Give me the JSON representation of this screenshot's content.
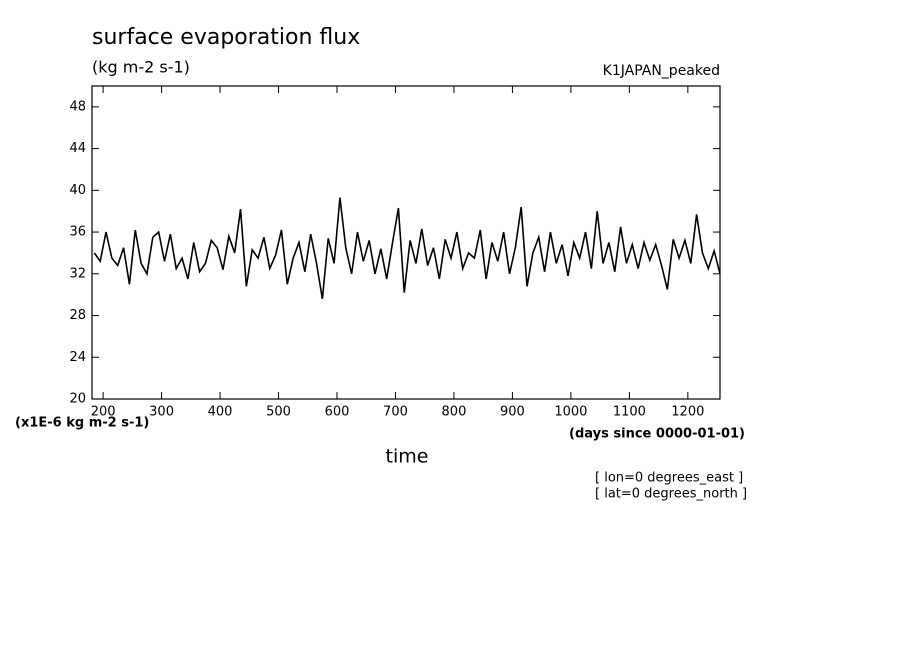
{
  "chart_data": {
    "type": "line",
    "title": "surface evaporation flux",
    "subtitle": "(kg m-2 s-1)",
    "experiment": "K1JAPAN_peaked",
    "y_unit_label": "(x1E-6 kg m-2 s-1)",
    "x_unit_label": "(days since 0000-01-01)",
    "xlabel": "time",
    "annotations": [
      "[ lon=0 degrees_east ]",
      "[ lat=0 degrees_north ]"
    ],
    "x": [
      185,
      195,
      205,
      215,
      225,
      235,
      245,
      255,
      265,
      275,
      285,
      295,
      305,
      315,
      325,
      335,
      345,
      355,
      365,
      375,
      385,
      395,
      405,
      415,
      425,
      435,
      445,
      455,
      465,
      475,
      485,
      495,
      505,
      515,
      525,
      535,
      545,
      555,
      565,
      575,
      585,
      595,
      605,
      615,
      625,
      635,
      645,
      655,
      665,
      675,
      685,
      695,
      705,
      715,
      725,
      735,
      745,
      755,
      765,
      775,
      785,
      795,
      805,
      815,
      825,
      835,
      845,
      855,
      865,
      875,
      885,
      895,
      905,
      915,
      925,
      935,
      945,
      955,
      965,
      975,
      985,
      995,
      1005,
      1015,
      1025,
      1035,
      1045,
      1055,
      1065,
      1075,
      1085,
      1095,
      1105,
      1115,
      1125,
      1135,
      1145,
      1155,
      1165,
      1175,
      1185,
      1195,
      1205,
      1215,
      1225,
      1235,
      1245,
      1255
    ],
    "values": [
      34.0,
      33.2,
      36.0,
      33.5,
      32.8,
      34.5,
      31.0,
      36.2,
      33.0,
      32.0,
      35.5,
      36.0,
      33.2,
      35.8,
      32.5,
      33.5,
      31.5,
      35.0,
      32.2,
      33.0,
      35.2,
      34.5,
      32.4,
      35.6,
      34.0,
      38.2,
      30.8,
      34.3,
      33.5,
      35.5,
      32.5,
      33.8,
      36.2,
      31.0,
      33.5,
      35.0,
      32.2,
      35.8,
      33.0,
      29.6,
      35.4,
      33.0,
      39.3,
      34.5,
      32.0,
      36.0,
      33.2,
      35.2,
      32.0,
      34.4,
      31.5,
      35.0,
      38.3,
      30.2,
      35.2,
      33.0,
      36.3,
      32.8,
      34.5,
      31.5,
      35.3,
      33.5,
      36.0,
      32.5,
      34.0,
      33.5,
      36.2,
      31.5,
      35.0,
      33.2,
      36.0,
      32.0,
      34.5,
      38.4,
      30.8,
      34.0,
      35.5,
      32.2,
      36.0,
      33.0,
      34.8,
      31.8,
      35.0,
      33.5,
      36.0,
      32.5,
      38.0,
      33.0,
      35.0,
      32.2,
      36.5,
      33.0,
      34.8,
      32.5,
      35.0,
      33.3,
      34.8,
      32.8,
      30.5,
      35.3,
      33.5,
      35.2,
      33.0,
      37.7,
      34.0,
      32.5,
      34.2,
      32.0
    ],
    "color": "#000000",
    "xlim": [
      181,
      1255
    ],
    "xticks": [
      200,
      300,
      400,
      500,
      600,
      700,
      800,
      900,
      1000,
      1100,
      1200
    ],
    "ylim": [
      20,
      50
    ],
    "yticks": [
      20,
      24,
      28,
      32,
      36,
      40,
      44,
      48
    ]
  }
}
